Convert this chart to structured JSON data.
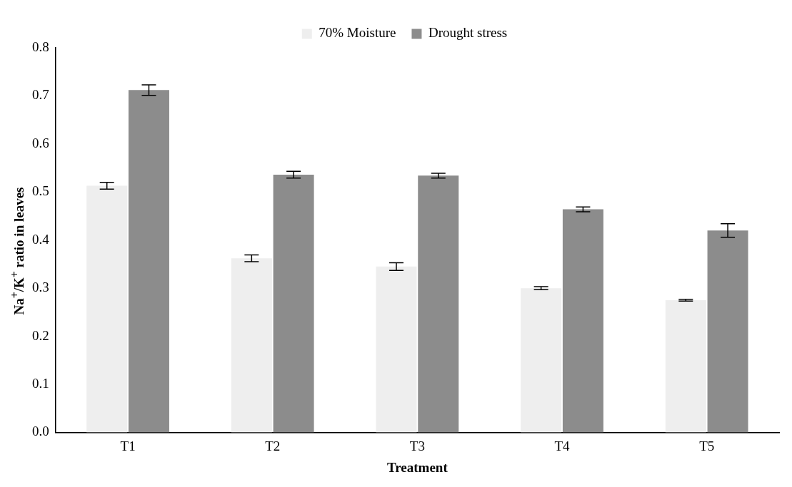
{
  "chart_data": {
    "type": "bar",
    "xlabel": "Treatment",
    "ylabel": "Na$^{+}$/K$^{+}$ ratio in leaves",
    "categories": [
      "T1",
      "T2",
      "T3",
      "T4",
      "T5"
    ],
    "series": [
      {
        "name": "70% Moisture",
        "color": "#eeeeee",
        "values": [
          0.513,
          0.362,
          0.345,
          0.3,
          0.275
        ],
        "errors": [
          0.007,
          0.007,
          0.008,
          0.003,
          0.002
        ]
      },
      {
        "name": "Drought stress",
        "color": "#8c8c8c",
        "values": [
          0.712,
          0.536,
          0.534,
          0.464,
          0.42
        ],
        "errors": [
          0.011,
          0.007,
          0.005,
          0.005,
          0.014
        ]
      }
    ],
    "ylim": [
      0,
      0.8
    ],
    "yticks": [
      {
        "value": 0,
        "label": "0.0"
      },
      0.1,
      0.2,
      0.3,
      0.4,
      0.5,
      0.6,
      0.7,
      0.8
    ],
    "grid": false,
    "legend": "top"
  }
}
